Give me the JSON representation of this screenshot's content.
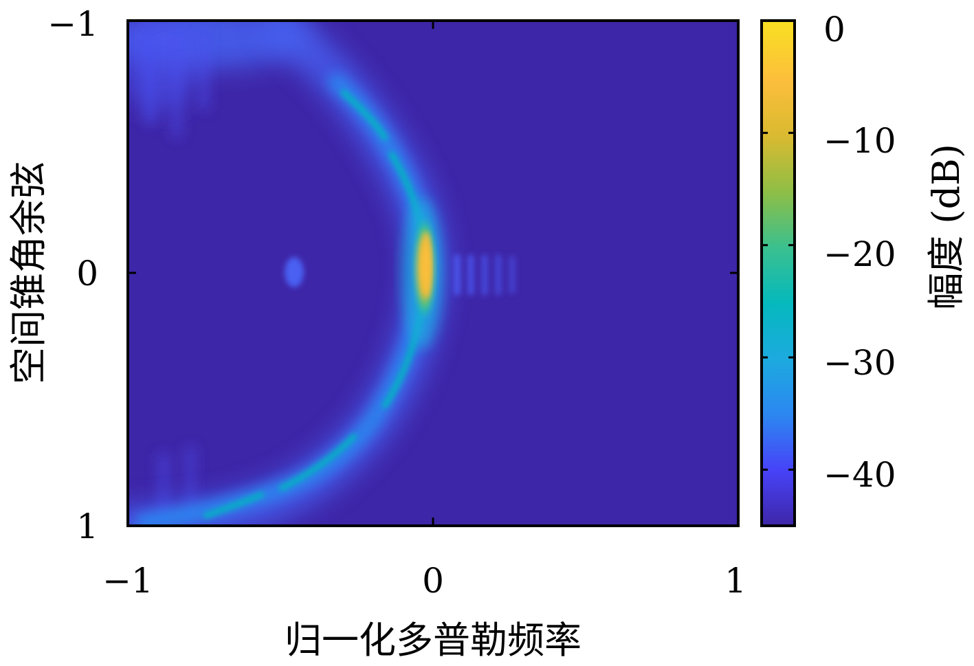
{
  "chart_data": [
    {
      "type": "heatmap",
      "xlabel": "归一化多普勒频率",
      "ylabel": "空间锥角余弦",
      "xlim": [
        -1,
        1
      ],
      "ylim": [
        -1,
        1
      ],
      "y_direction": "reversed (−1 at top, 1 at bottom)",
      "xticks": [
        "−1",
        "0",
        "1"
      ],
      "yticks": [
        "−1",
        "0",
        "1"
      ],
      "grid": false,
      "background_level_db": -45,
      "features": [
        {
          "name": "clutter ridge (arc)",
          "description": "crescent-shaped clutter arc from (x≈-0.4,y≈-1) through (x≈0,y≈0) to (x≈-0.4,y≈1), level ≈ -32 to -15 dB"
        },
        {
          "name": "main peak",
          "x": -0.02,
          "y": 0.0,
          "value_db": -5
        },
        {
          "name": "weak target",
          "x": -0.45,
          "y": 0.0,
          "value_db": -35
        },
        {
          "name": "sidelobe stripes",
          "x_range": [
            0.05,
            0.28
          ],
          "y": 0.0,
          "value_db": -38
        },
        {
          "name": "upper-left diffuse clutter",
          "x_range": [
            -1,
            -0.45
          ],
          "y_range": [
            -1,
            -0.85
          ],
          "value_db": -38
        },
        {
          "name": "lower-left bright arc end",
          "x_range": [
            -1,
            -0.45
          ],
          "y": 0.95,
          "value_db": -28
        }
      ],
      "colorbar": {
        "label": "幅度 (dB)",
        "range": [
          -45,
          0
        ],
        "ticks": [
          "0",
          "−10",
          "−20",
          "−30",
          "−40"
        ],
        "tick_values": [
          0,
          -10,
          -20,
          -30,
          -40
        ],
        "colormap": "parula",
        "colors": [
          "#3e26a8",
          "#4743f8",
          "#2c87f0",
          "#1caadf",
          "#05b9bd",
          "#3ac08f",
          "#8ebe46",
          "#d9ba30",
          "#fcbe3c",
          "#f9e021"
        ]
      }
    }
  ]
}
